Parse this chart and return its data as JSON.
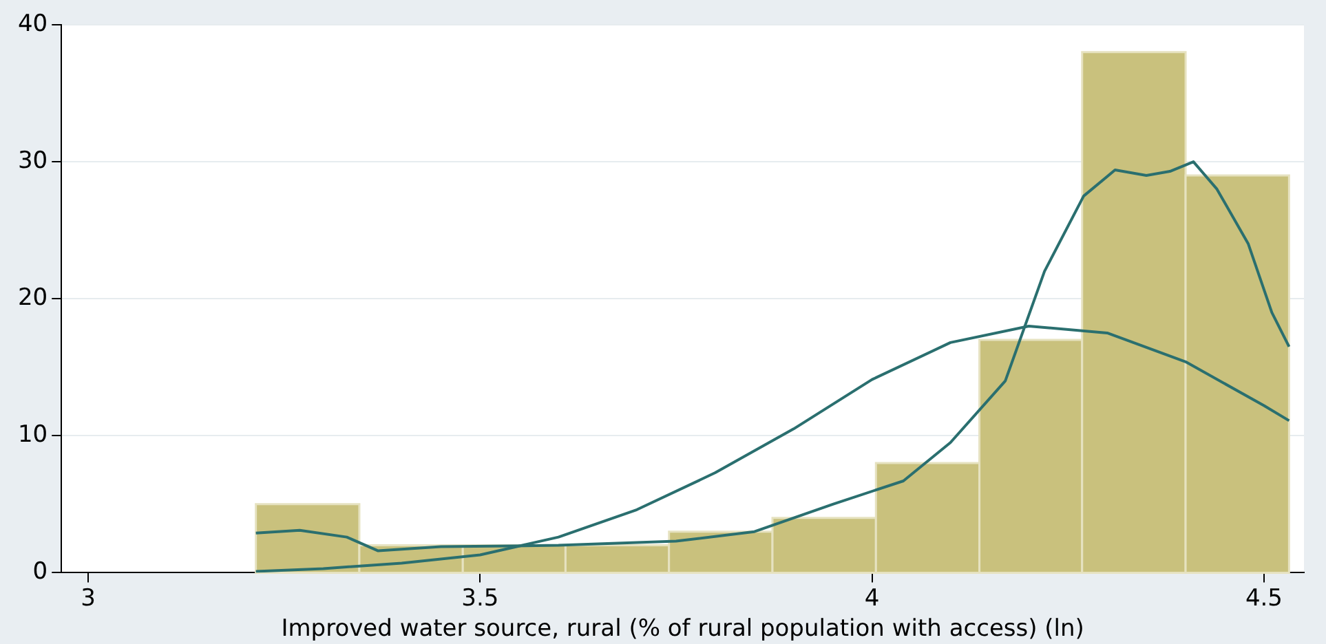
{
  "chart_data": {
    "type": "histogram",
    "xlabel": "Improved water source, rural (% of rural population with access) (ln)",
    "bins": [
      3.214,
      3.346,
      3.478,
      3.609,
      3.741,
      3.873,
      4.005,
      4.137,
      4.268,
      4.4,
      4.532
    ],
    "values": [
      5,
      2,
      2,
      2,
      3,
      4,
      8,
      17,
      38,
      29
    ],
    "color": "#c9c17d",
    "series": [
      {
        "type": "line",
        "color": "#2a6f6f",
        "x": [
          3.214,
          3.27,
          3.33,
          3.37,
          3.45,
          3.6,
          3.75,
          3.85,
          3.95,
          4.04,
          4.1,
          4.17,
          4.22,
          4.27,
          4.31,
          4.35,
          4.38,
          4.41,
          4.44,
          4.48,
          4.51,
          4.532
        ],
        "values": [
          2.9,
          3.1,
          2.6,
          1.6,
          1.9,
          2.0,
          2.3,
          3.0,
          5.0,
          6.7,
          9.5,
          14,
          22,
          27.5,
          29.4,
          29,
          29.3,
          30,
          28,
          24,
          19,
          16.5
        ]
      },
      {
        "type": "line",
        "color": "#2a6f6f",
        "x": [
          3.214,
          3.3,
          3.4,
          3.5,
          3.6,
          3.7,
          3.8,
          3.9,
          4.0,
          4.1,
          4.2,
          4.3,
          4.4,
          4.5,
          4.532
        ],
        "values": [
          0.1,
          0.3,
          0.7,
          1.3,
          2.6,
          4.6,
          7.3,
          10.5,
          14.1,
          16.8,
          18,
          17.5,
          15.4,
          12.2,
          11.1
        ]
      }
    ],
    "xlim": [
      2.966,
      4.551
    ],
    "xticks": [
      3,
      3.5,
      4,
      4.5
    ],
    "ylim": [
      0,
      40
    ],
    "yticks": [
      0,
      10,
      20,
      30,
      40
    ],
    "grid": "y",
    "legend": false
  }
}
